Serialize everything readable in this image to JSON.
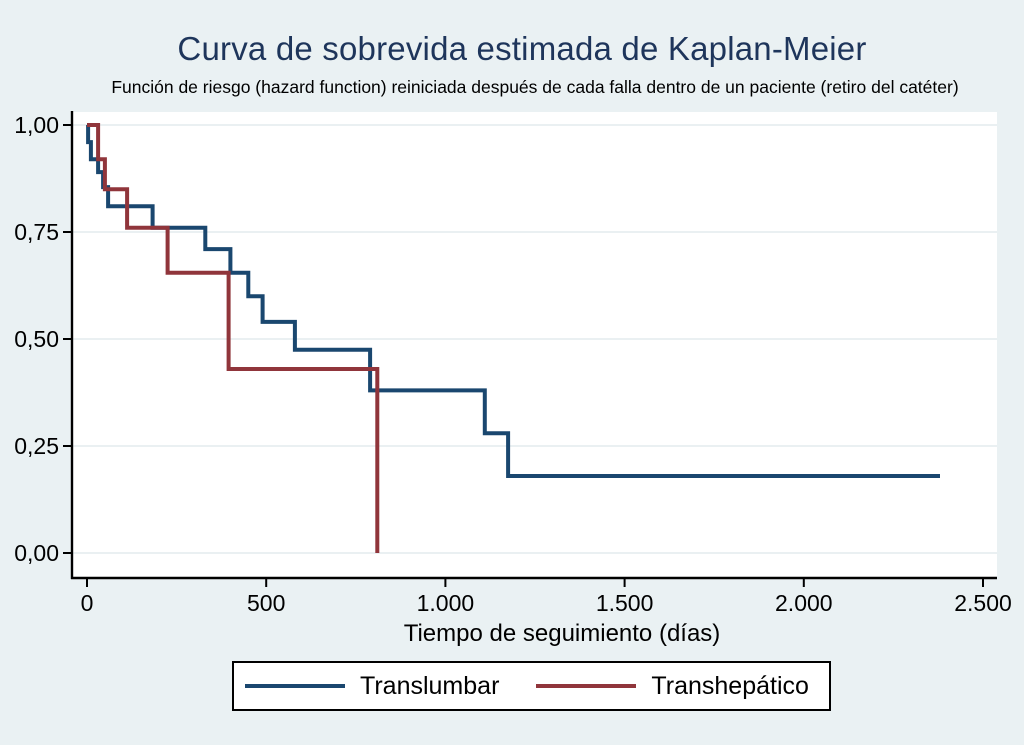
{
  "colors": {
    "background": "#eaf1f3",
    "plot_bg": "#ffffff",
    "grid": "#e3ebee",
    "axis": "#000000",
    "text": "#000000",
    "title_text": "#1e355b",
    "navy": "#1a476f",
    "maroon": "#90353b",
    "legend_bg": "#ffffff",
    "legend_border": "#000000"
  },
  "chart_data": {
    "type": "line",
    "subtype": "kaplan-meier-step",
    "title": "Curva de sobrevida estimada de Kaplan-Meier",
    "subtitle": "Función de riesgo (hazard function) reiniciada después de cada falla dentro de un paciente (retiro del catéter)",
    "xlabel": "Tiempo de seguimiento (días)",
    "ylabel": "",
    "xlim": [
      0,
      2540
    ],
    "ylim": [
      0,
      1
    ],
    "grid": "horizontal",
    "legend_position": "bottom",
    "x_ticks": [
      {
        "value": 0,
        "label": "0"
      },
      {
        "value": 500,
        "label": "500"
      },
      {
        "value": 1000,
        "label": "1.000"
      },
      {
        "value": 1500,
        "label": "1.500"
      },
      {
        "value": 2000,
        "label": "2.000"
      },
      {
        "value": 2500,
        "label": "2.500"
      }
    ],
    "y_ticks": [
      {
        "value": 0,
        "label": "0,00"
      },
      {
        "value": 0.25,
        "label": "0,25"
      },
      {
        "value": 0.5,
        "label": "0,50"
      },
      {
        "value": 0.75,
        "label": "0,75"
      },
      {
        "value": 1,
        "label": "1,00"
      }
    ],
    "legend": [
      {
        "name": "Translumbar",
        "color": "#1a476f"
      },
      {
        "name": "Transhepático",
        "color": "#90353b"
      }
    ],
    "series": [
      {
        "name": "Translumbar",
        "color": "#1a476f",
        "step_points": [
          [
            0,
            1.0
          ],
          [
            3,
            0.96
          ],
          [
            11,
            0.92
          ],
          [
            31,
            0.89
          ],
          [
            45,
            0.855
          ],
          [
            59,
            0.81
          ],
          [
            183,
            0.76
          ],
          [
            330,
            0.71
          ],
          [
            400,
            0.655
          ],
          [
            450,
            0.6
          ],
          [
            490,
            0.54
          ],
          [
            580,
            0.475
          ],
          [
            790,
            0.38
          ],
          [
            1110,
            0.28
          ],
          [
            1175,
            0.18
          ],
          [
            2380,
            0.18
          ]
        ]
      },
      {
        "name": "Transhepático",
        "color": "#90353b",
        "step_points": [
          [
            0,
            1.0
          ],
          [
            31,
            0.92
          ],
          [
            50,
            0.85
          ],
          [
            112,
            0.76
          ],
          [
            225,
            0.655
          ],
          [
            395,
            0.43
          ],
          [
            810,
            0.0
          ]
        ]
      }
    ]
  }
}
